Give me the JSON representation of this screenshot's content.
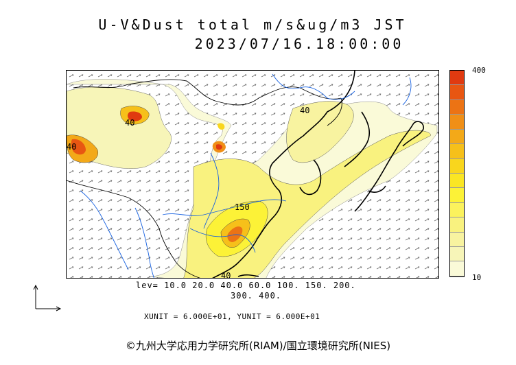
{
  "title": "U-V&Dust total m/s&ug/m3 JST",
  "datetime": "2023/07/16.18:00:00",
  "colorbar": {
    "max_label": "400",
    "min_label": "10",
    "colors": [
      "#fafad8",
      "#f7f5b8",
      "#f8f3a0",
      "#f9f27f",
      "#fbf25d",
      "#fcf237",
      "#fae624",
      "#f9d61d",
      "#f6c01a",
      "#f3a918",
      "#f08f16",
      "#ec7314",
      "#e85612",
      "#e03a10"
    ]
  },
  "contour_labels": [
    "40",
    "40",
    "150",
    "40",
    "40"
  ],
  "levels": {
    "line1": "lev= 10.0 20.0 40.0 60.0 100. 150. 200.",
    "line2": "300. 400."
  },
  "units_line": "XUNIT = 6.000E+01, YUNIT = 6.000E+01",
  "copyright": "©九州大学応用力学研究所(RIAM)/国立環境研究所(NIES)",
  "colors": {
    "coast": "#000000",
    "river": "#1560e0",
    "border": "#000000"
  }
}
